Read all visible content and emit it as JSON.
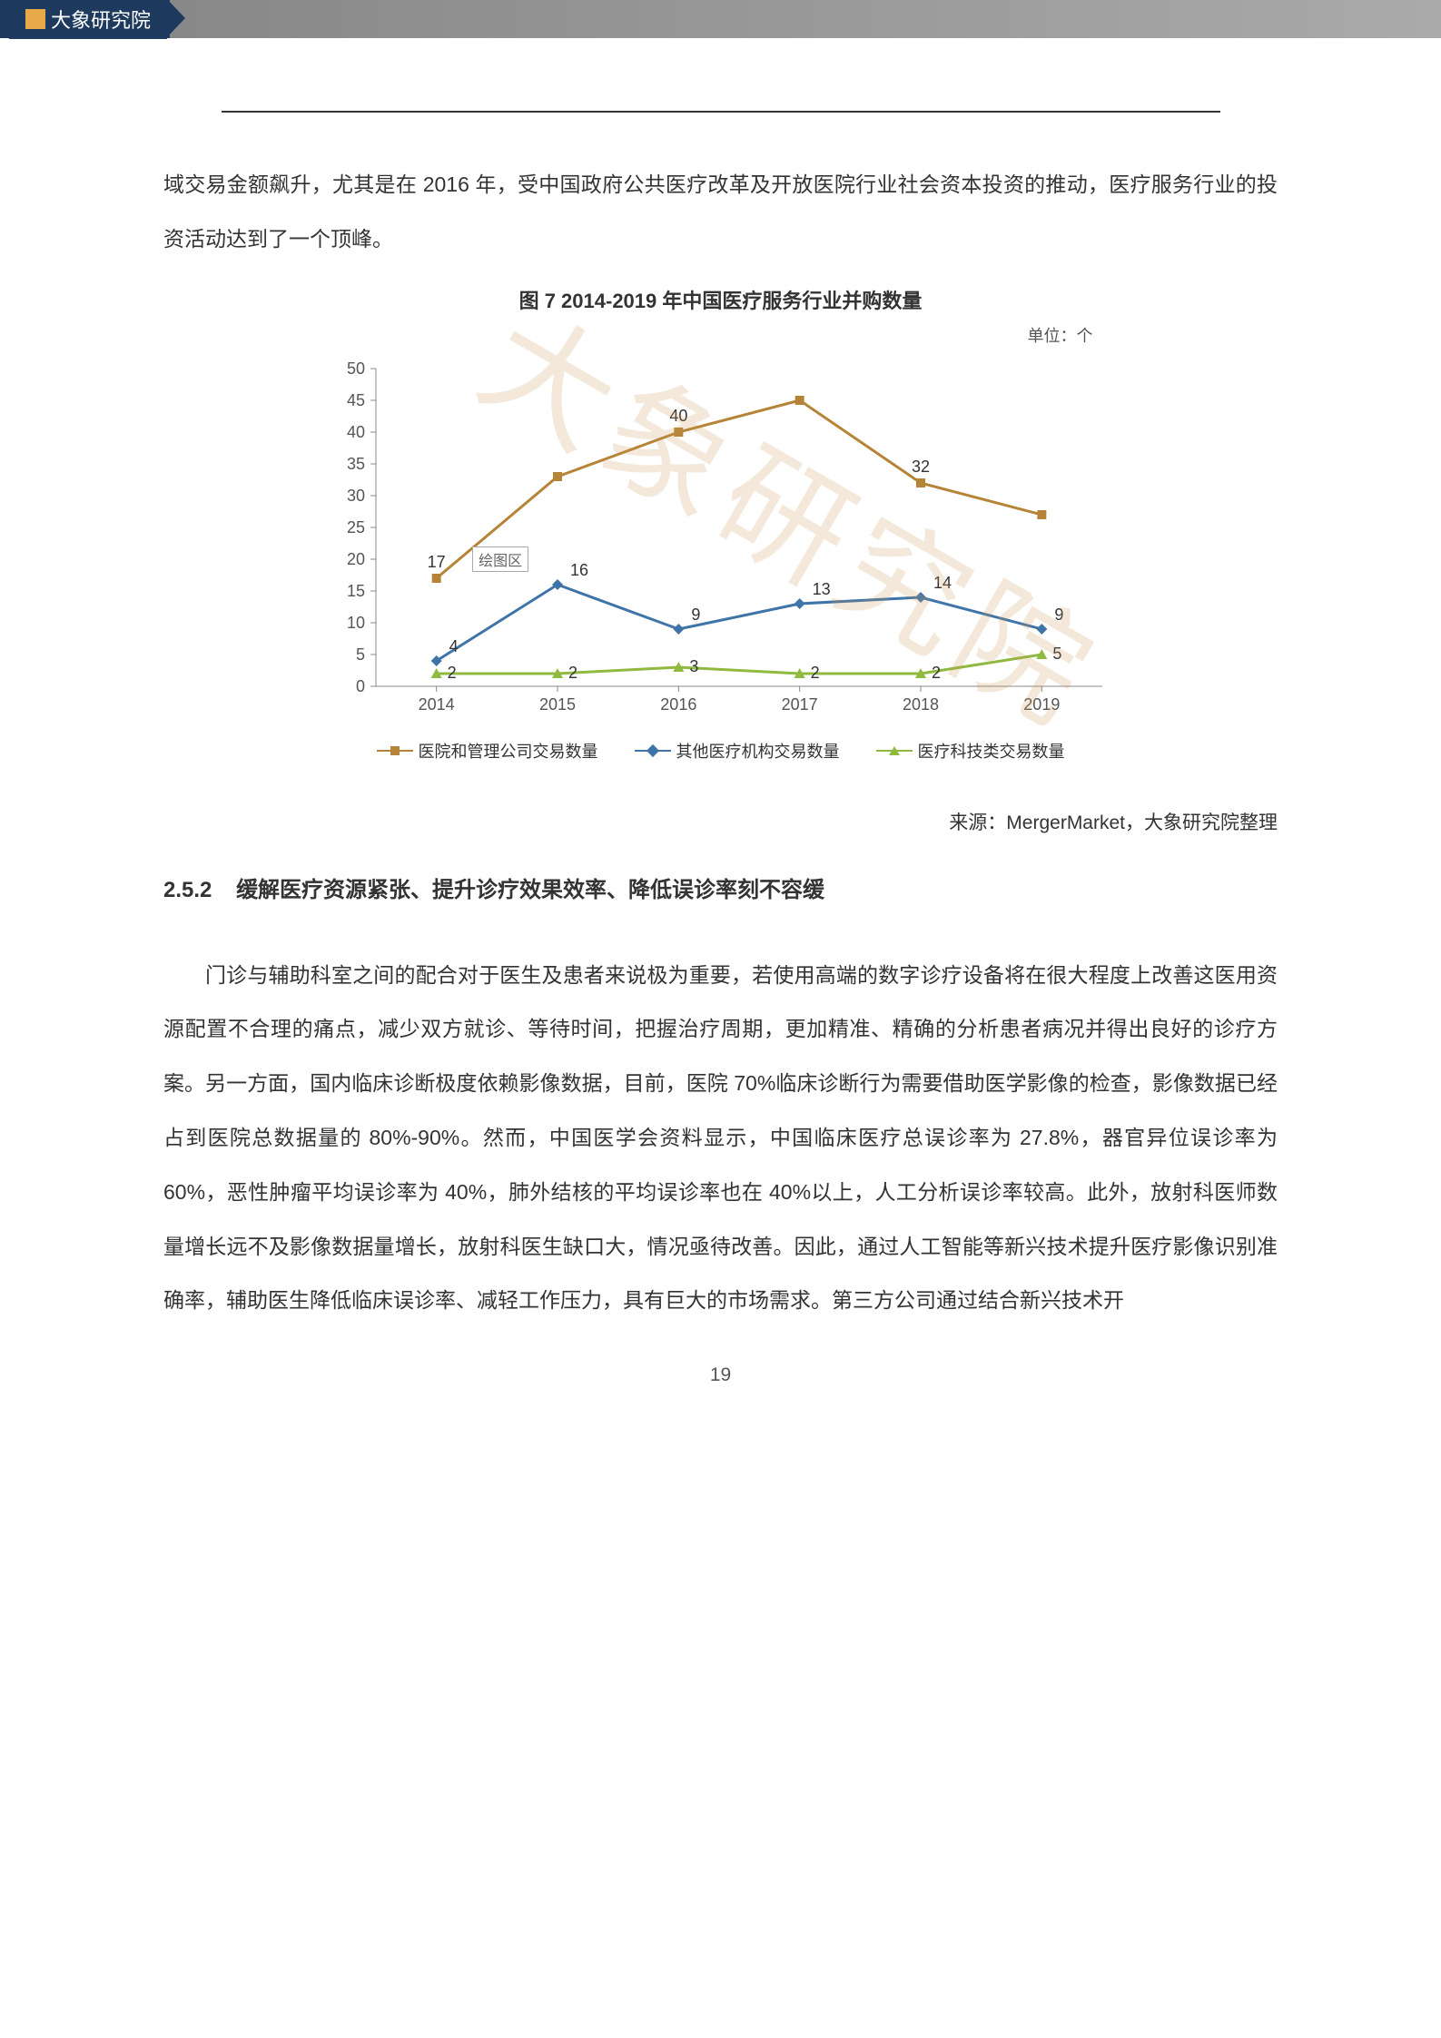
{
  "header": {
    "logo_text": "大象研究院"
  },
  "intro_para": "域交易金额飙升，尤其是在 2016 年，受中国政府公共医疗改革及开放医院行业社会资本投资的推动，医疗服务行业的投资活动达到了一个顶峰。",
  "chart": {
    "type": "line",
    "title": "图 7 2014-2019 年中国医疗服务行业并购数量",
    "unit": "单位：个",
    "categories": [
      "2014",
      "2015",
      "2016",
      "2017",
      "2018",
      "2019"
    ],
    "series": [
      {
        "name": "医院和管理公司交易数量",
        "color": "#b58436",
        "marker": "square",
        "values": [
          17,
          33,
          40,
          45,
          32,
          27
        ]
      },
      {
        "name": "其他医疗机构交易数量",
        "color": "#3f74a8",
        "marker": "diamond",
        "values": [
          4,
          16,
          9,
          13,
          14,
          9
        ]
      },
      {
        "name": "医疗科技类交易数量",
        "color": "#8fb93f",
        "marker": "triangle",
        "values": [
          2,
          2,
          3,
          2,
          2,
          5
        ]
      }
    ],
    "point_labels": {
      "s0": [
        "17",
        "",
        "40",
        "",
        "32",
        ""
      ],
      "s1": [
        "4",
        "16",
        "9",
        "13",
        "14",
        "9"
      ],
      "s2": [
        "2",
        "2",
        "3",
        "2",
        "2",
        "5"
      ]
    },
    "ylim": [
      0,
      50
    ],
    "ytick_step": 5,
    "yticks": [
      0,
      5,
      10,
      15,
      20,
      25,
      30,
      35,
      40,
      45,
      50
    ],
    "axis_color": "#888888",
    "tick_font_size": 18,
    "label_font_size": 18,
    "background_color": "#ffffff",
    "plotbox_label": "绘图区",
    "source": "来源：MergerMarket，大象研究院整理"
  },
  "section": {
    "number": "2.5.2",
    "title": "缓解医疗资源紧张、提升诊疗效果效率、降低误诊率刻不容缓",
    "body": "门诊与辅助科室之间的配合对于医生及患者来说极为重要，若使用高端的数字诊疗设备将在很大程度上改善这医用资源配置不合理的痛点，减少双方就诊、等待时间，把握治疗周期，更加精准、精确的分析患者病况并得出良好的诊疗方案。另一方面，国内临床诊断极度依赖影像数据，目前，医院 70%临床诊断行为需要借助医学影像的检查，影像数据已经占到医院总数据量的 80%-90%。然而，中国医学会资料显示，中国临床医疗总误诊率为 27.8%，器官异位误诊率为 60%，恶性肿瘤平均误诊率为 40%，肺外结核的平均误诊率也在 40%以上，人工分析误诊率较高。此外，放射科医师数量增长远不及影像数据量增长，放射科医生缺口大，情况亟待改善。因此，通过人工智能等新兴技术提升医疗影像识别准确率，辅助医生降低临床误诊率、减轻工作压力，具有巨大的市场需求。第三方公司通过结合新兴技术开"
  },
  "watermark_text": "大象研究院",
  "page_number": "19"
}
